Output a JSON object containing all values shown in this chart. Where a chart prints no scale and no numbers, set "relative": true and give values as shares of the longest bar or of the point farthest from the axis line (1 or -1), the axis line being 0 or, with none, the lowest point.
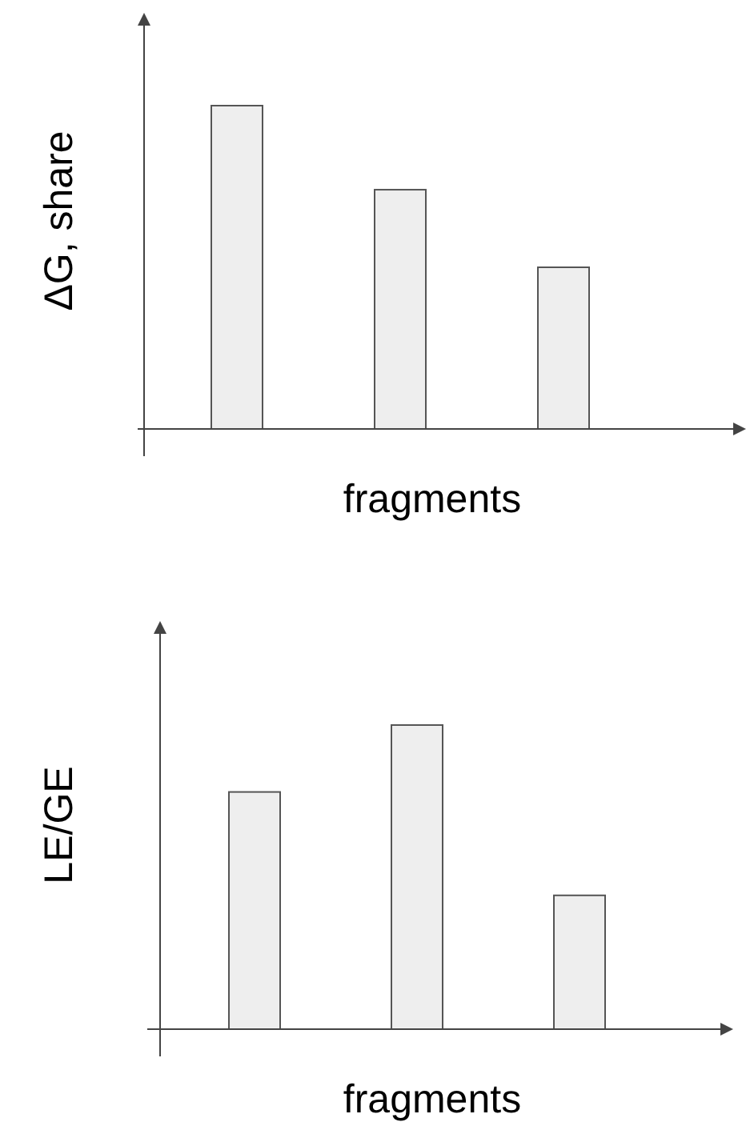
{
  "chart_data": [
    {
      "type": "bar",
      "relative": true,
      "xlabel": "fragments",
      "ylabel": "ΔG, share",
      "categories": [
        null,
        null,
        null
      ],
      "values": [
        1,
        0.74,
        0.5
      ],
      "color": "#eeeeee"
    },
    {
      "type": "bar",
      "relative": true,
      "xlabel": "fragments",
      "ylabel": "LE/GE",
      "categories": [
        null,
        null,
        null
      ],
      "values": [
        0.78,
        1,
        0.44
      ],
      "color": "#eeeeee"
    }
  ]
}
